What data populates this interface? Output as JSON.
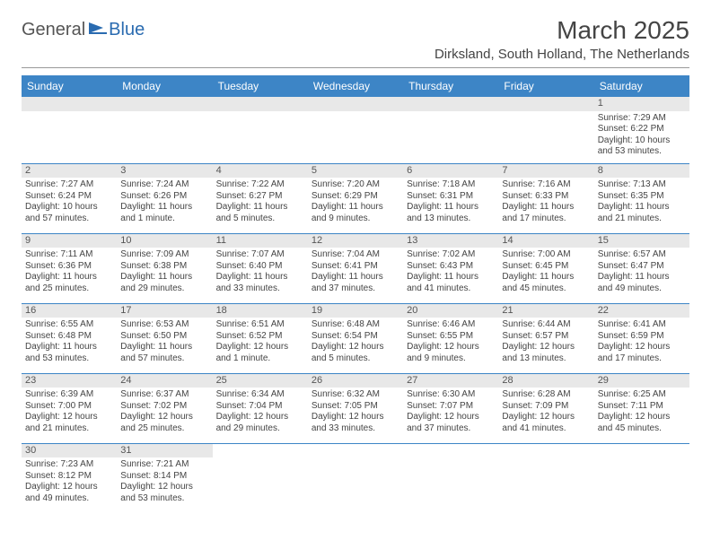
{
  "logo": {
    "text1": "General",
    "text2": "Blue"
  },
  "title": "March 2025",
  "location": "Dirksland, South Holland, The Netherlands",
  "columns": [
    "Sunday",
    "Monday",
    "Tuesday",
    "Wednesday",
    "Thursday",
    "Friday",
    "Saturday"
  ],
  "colors": {
    "header_bg": "#3d85c6",
    "header_text": "#ffffff",
    "cell_border": "#3d85c6",
    "daynum_bg": "#e8e8e8",
    "logo_blue": "#2a6bb0"
  },
  "weeks": [
    [
      null,
      null,
      null,
      null,
      null,
      null,
      {
        "n": "1",
        "sunrise": "Sunrise: 7:29 AM",
        "sunset": "Sunset: 6:22 PM",
        "daylight": "Daylight: 10 hours and 53 minutes."
      }
    ],
    [
      {
        "n": "2",
        "sunrise": "Sunrise: 7:27 AM",
        "sunset": "Sunset: 6:24 PM",
        "daylight": "Daylight: 10 hours and 57 minutes."
      },
      {
        "n": "3",
        "sunrise": "Sunrise: 7:24 AM",
        "sunset": "Sunset: 6:26 PM",
        "daylight": "Daylight: 11 hours and 1 minute."
      },
      {
        "n": "4",
        "sunrise": "Sunrise: 7:22 AM",
        "sunset": "Sunset: 6:27 PM",
        "daylight": "Daylight: 11 hours and 5 minutes."
      },
      {
        "n": "5",
        "sunrise": "Sunrise: 7:20 AM",
        "sunset": "Sunset: 6:29 PM",
        "daylight": "Daylight: 11 hours and 9 minutes."
      },
      {
        "n": "6",
        "sunrise": "Sunrise: 7:18 AM",
        "sunset": "Sunset: 6:31 PM",
        "daylight": "Daylight: 11 hours and 13 minutes."
      },
      {
        "n": "7",
        "sunrise": "Sunrise: 7:16 AM",
        "sunset": "Sunset: 6:33 PM",
        "daylight": "Daylight: 11 hours and 17 minutes."
      },
      {
        "n": "8",
        "sunrise": "Sunrise: 7:13 AM",
        "sunset": "Sunset: 6:35 PM",
        "daylight": "Daylight: 11 hours and 21 minutes."
      }
    ],
    [
      {
        "n": "9",
        "sunrise": "Sunrise: 7:11 AM",
        "sunset": "Sunset: 6:36 PM",
        "daylight": "Daylight: 11 hours and 25 minutes."
      },
      {
        "n": "10",
        "sunrise": "Sunrise: 7:09 AM",
        "sunset": "Sunset: 6:38 PM",
        "daylight": "Daylight: 11 hours and 29 minutes."
      },
      {
        "n": "11",
        "sunrise": "Sunrise: 7:07 AM",
        "sunset": "Sunset: 6:40 PM",
        "daylight": "Daylight: 11 hours and 33 minutes."
      },
      {
        "n": "12",
        "sunrise": "Sunrise: 7:04 AM",
        "sunset": "Sunset: 6:41 PM",
        "daylight": "Daylight: 11 hours and 37 minutes."
      },
      {
        "n": "13",
        "sunrise": "Sunrise: 7:02 AM",
        "sunset": "Sunset: 6:43 PM",
        "daylight": "Daylight: 11 hours and 41 minutes."
      },
      {
        "n": "14",
        "sunrise": "Sunrise: 7:00 AM",
        "sunset": "Sunset: 6:45 PM",
        "daylight": "Daylight: 11 hours and 45 minutes."
      },
      {
        "n": "15",
        "sunrise": "Sunrise: 6:57 AM",
        "sunset": "Sunset: 6:47 PM",
        "daylight": "Daylight: 11 hours and 49 minutes."
      }
    ],
    [
      {
        "n": "16",
        "sunrise": "Sunrise: 6:55 AM",
        "sunset": "Sunset: 6:48 PM",
        "daylight": "Daylight: 11 hours and 53 minutes."
      },
      {
        "n": "17",
        "sunrise": "Sunrise: 6:53 AM",
        "sunset": "Sunset: 6:50 PM",
        "daylight": "Daylight: 11 hours and 57 minutes."
      },
      {
        "n": "18",
        "sunrise": "Sunrise: 6:51 AM",
        "sunset": "Sunset: 6:52 PM",
        "daylight": "Daylight: 12 hours and 1 minute."
      },
      {
        "n": "19",
        "sunrise": "Sunrise: 6:48 AM",
        "sunset": "Sunset: 6:54 PM",
        "daylight": "Daylight: 12 hours and 5 minutes."
      },
      {
        "n": "20",
        "sunrise": "Sunrise: 6:46 AM",
        "sunset": "Sunset: 6:55 PM",
        "daylight": "Daylight: 12 hours and 9 minutes."
      },
      {
        "n": "21",
        "sunrise": "Sunrise: 6:44 AM",
        "sunset": "Sunset: 6:57 PM",
        "daylight": "Daylight: 12 hours and 13 minutes."
      },
      {
        "n": "22",
        "sunrise": "Sunrise: 6:41 AM",
        "sunset": "Sunset: 6:59 PM",
        "daylight": "Daylight: 12 hours and 17 minutes."
      }
    ],
    [
      {
        "n": "23",
        "sunrise": "Sunrise: 6:39 AM",
        "sunset": "Sunset: 7:00 PM",
        "daylight": "Daylight: 12 hours and 21 minutes."
      },
      {
        "n": "24",
        "sunrise": "Sunrise: 6:37 AM",
        "sunset": "Sunset: 7:02 PM",
        "daylight": "Daylight: 12 hours and 25 minutes."
      },
      {
        "n": "25",
        "sunrise": "Sunrise: 6:34 AM",
        "sunset": "Sunset: 7:04 PM",
        "daylight": "Daylight: 12 hours and 29 minutes."
      },
      {
        "n": "26",
        "sunrise": "Sunrise: 6:32 AM",
        "sunset": "Sunset: 7:05 PM",
        "daylight": "Daylight: 12 hours and 33 minutes."
      },
      {
        "n": "27",
        "sunrise": "Sunrise: 6:30 AM",
        "sunset": "Sunset: 7:07 PM",
        "daylight": "Daylight: 12 hours and 37 minutes."
      },
      {
        "n": "28",
        "sunrise": "Sunrise: 6:28 AM",
        "sunset": "Sunset: 7:09 PM",
        "daylight": "Daylight: 12 hours and 41 minutes."
      },
      {
        "n": "29",
        "sunrise": "Sunrise: 6:25 AM",
        "sunset": "Sunset: 7:11 PM",
        "daylight": "Daylight: 12 hours and 45 minutes."
      }
    ],
    [
      {
        "n": "30",
        "sunrise": "Sunrise: 7:23 AM",
        "sunset": "Sunset: 8:12 PM",
        "daylight": "Daylight: 12 hours and 49 minutes."
      },
      {
        "n": "31",
        "sunrise": "Sunrise: 7:21 AM",
        "sunset": "Sunset: 8:14 PM",
        "daylight": "Daylight: 12 hours and 53 minutes."
      },
      null,
      null,
      null,
      null,
      null
    ]
  ]
}
